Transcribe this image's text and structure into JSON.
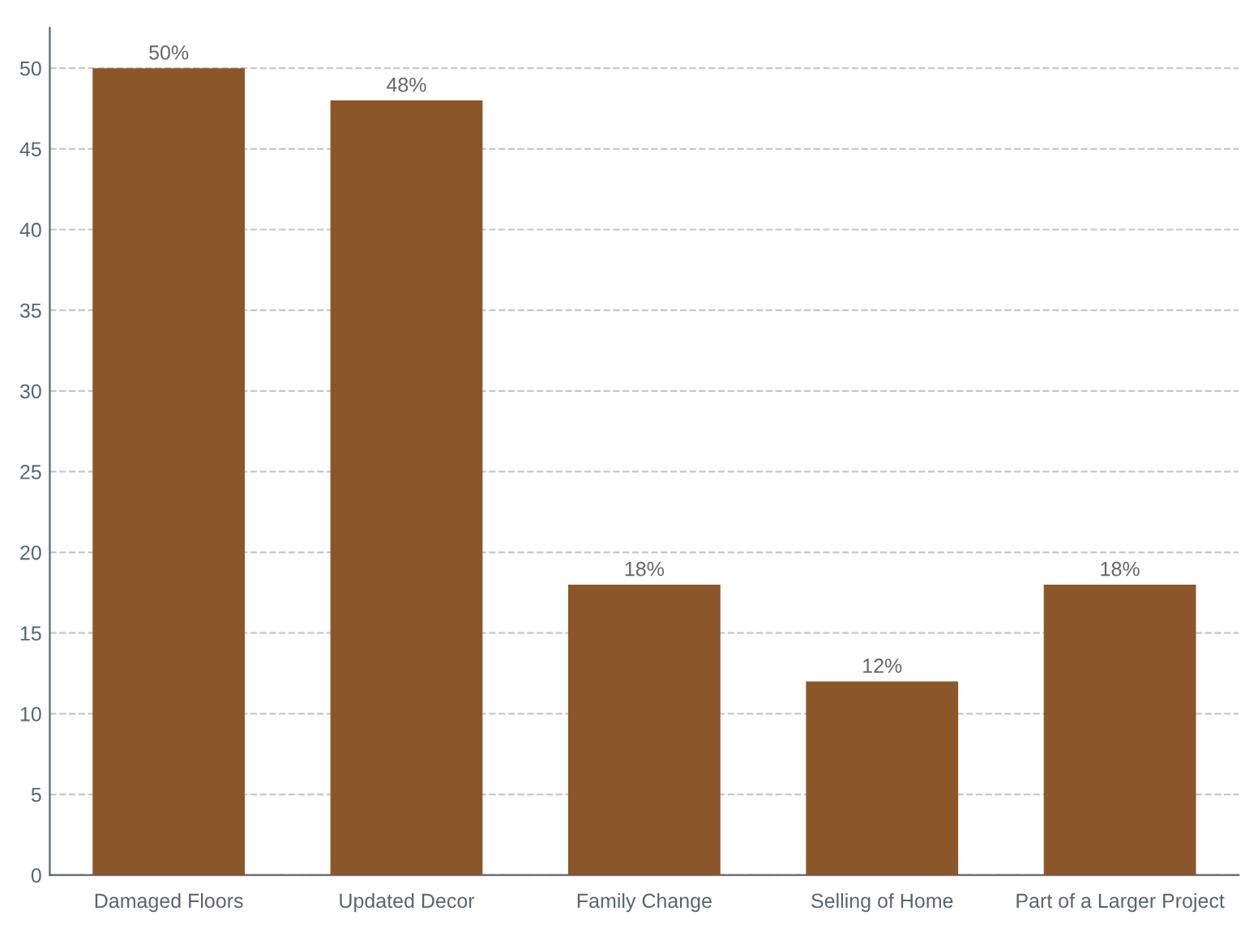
{
  "chart_data": {
    "type": "bar",
    "categories": [
      "Damaged Floors",
      "Updated Decor",
      "Family Change",
      "Selling of Home",
      "Part of a Larger Project"
    ],
    "values": [
      50,
      48,
      18,
      12,
      18
    ],
    "value_labels": [
      "50%",
      "48%",
      "18%",
      "12%",
      "18%"
    ],
    "color": "#8b572a",
    "ylim": [
      0,
      52.5
    ],
    "yticks": [
      0,
      5,
      10,
      15,
      20,
      25,
      30,
      35,
      40,
      45,
      50
    ],
    "grid": "y",
    "legend": false
  }
}
